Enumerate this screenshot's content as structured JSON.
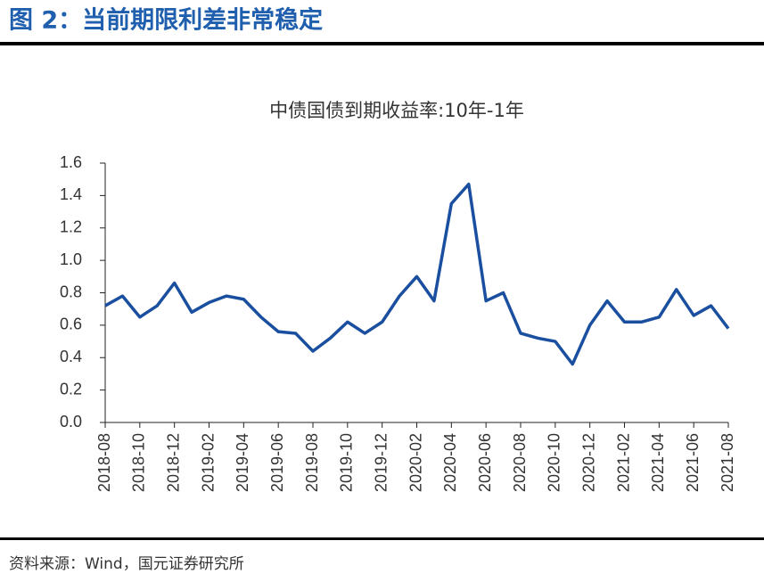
{
  "header": {
    "title": "图 2：当前期限利差非常稳定"
  },
  "chart_data": {
    "type": "line",
    "title": "中债国债到期收益率:10年-1年",
    "x": [
      "2018-08",
      "2018-09",
      "2018-10",
      "2018-11",
      "2018-12",
      "2019-01",
      "2019-02",
      "2019-03",
      "2019-04",
      "2019-05",
      "2019-06",
      "2019-07",
      "2019-08",
      "2019-09",
      "2019-10",
      "2019-11",
      "2019-12",
      "2020-01",
      "2020-02",
      "2020-03",
      "2020-04",
      "2020-05",
      "2020-06",
      "2020-07",
      "2020-08",
      "2020-09",
      "2020-10",
      "2020-11",
      "2020-12",
      "2021-01",
      "2021-02",
      "2021-03",
      "2021-04",
      "2021-05",
      "2021-06",
      "2021-07",
      "2021-08"
    ],
    "series": [
      {
        "name": "中债国债到期收益率:10年-1年",
        "color": "#1a4f9f",
        "values": [
          0.72,
          0.78,
          0.65,
          0.72,
          0.86,
          0.68,
          0.74,
          0.78,
          0.76,
          0.65,
          0.56,
          0.55,
          0.44,
          0.52,
          0.62,
          0.55,
          0.62,
          0.78,
          0.9,
          0.75,
          1.35,
          1.47,
          0.75,
          0.8,
          0.55,
          0.52,
          0.5,
          0.36,
          0.6,
          0.75,
          0.62,
          0.62,
          0.65,
          0.82,
          0.66,
          0.72,
          0.58
        ]
      }
    ],
    "xticks": [
      "2018-08",
      "2018-10",
      "2018-12",
      "2019-02",
      "2019-04",
      "2019-06",
      "2019-08",
      "2019-10",
      "2019-12",
      "2020-02",
      "2020-04",
      "2020-06",
      "2020-08",
      "2020-10",
      "2020-12",
      "2021-02",
      "2021-04",
      "2021-06",
      "2021-08"
    ],
    "ylim": [
      0,
      1.6
    ],
    "yticks": [
      {
        "value": 0,
        "label": "0.0"
      },
      0.2,
      0.4,
      0.6,
      0.8,
      {
        "value": 1,
        "label": "1.0"
      },
      1.2,
      1.4,
      1.6
    ],
    "grid": false
  },
  "footer": {
    "source": "资料来源：Wind，国元证券研究所"
  }
}
